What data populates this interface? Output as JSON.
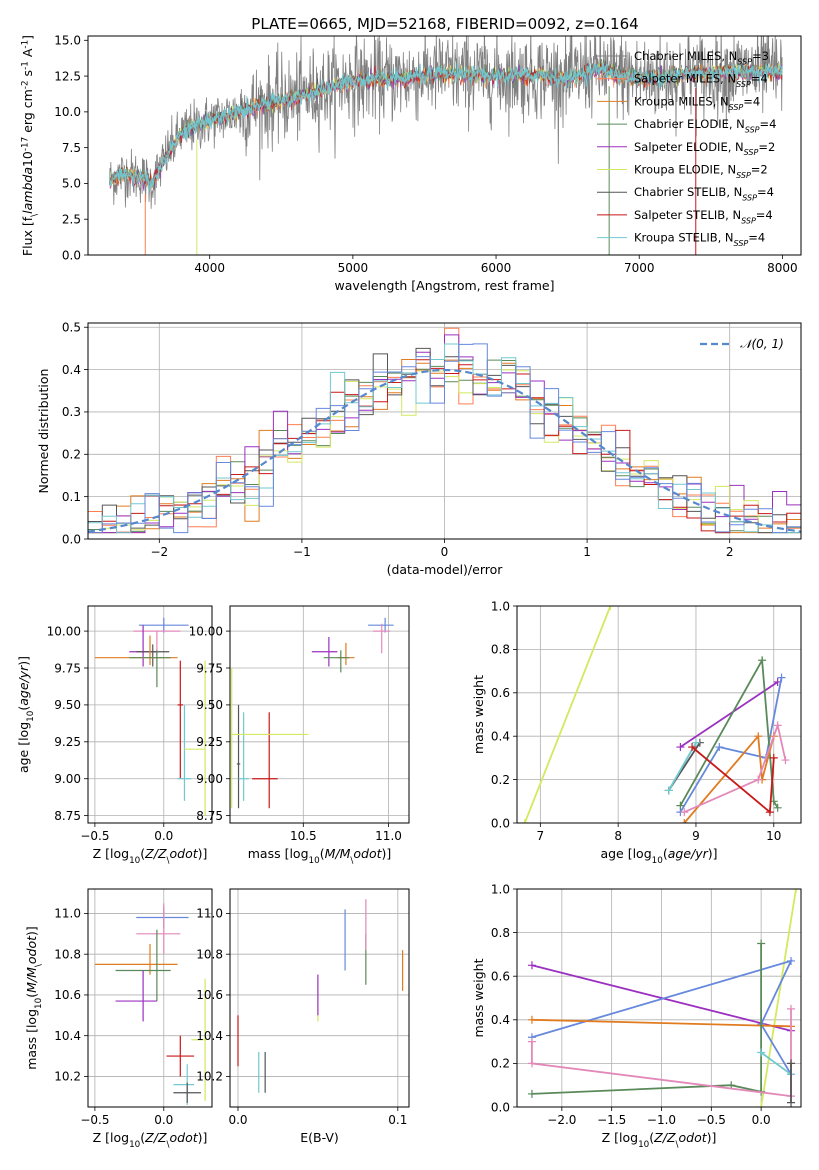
{
  "figure": {
    "title": "PLATE=0665, MJD=52168, FIBERID=0092, z=0.164"
  },
  "palette": [
    "#808080",
    "#ff7f50",
    "#e07b20",
    "#5a8a5a",
    "#9b30c0",
    "#d4e860",
    "#555555",
    "#c81818",
    "#70c8d0",
    "#6688dd",
    "#e389b9"
  ],
  "chart_data": [
    {
      "id": "spectrum",
      "type": "line",
      "xlabel": "wavelength [Angstrom, rest frame]",
      "ylabel": "Flux [f$_\\lambda$10$^{-17}$ erg cm$^{-2}$ s$^{-1}$ A$^{-1}$]",
      "xlim": [
        3150,
        8130
      ],
      "ylim": [
        0,
        15.3
      ],
      "xticks": [
        4000,
        5000,
        6000,
        7000,
        8000
      ],
      "yticks": [
        0.0,
        2.5,
        5.0,
        7.5,
        10.0,
        12.5,
        15.0
      ],
      "grid": false,
      "legend_position": "top-right",
      "legend": [
        "Chabrier MILES, N$_{SSP}$=3",
        "Salpeter MILES, N$_{SSP}$=4",
        "Kroupa MILES, N$_{SSP}$=4",
        "Chabrier ELODIE, N$_{SSP}$=4",
        "Salpeter ELODIE, N$_{SSP}$=2",
        "Kroupa ELODIE, N$_{SSP}$=2",
        "Chabrier STELIB, N$_{SSP}$=4",
        "Salpeter STELIB, N$_{SSP}$=4",
        "Kroupa STELIB, N$_{SSP}$=4"
      ],
      "spectrum_anchors": {
        "x": [
          3300,
          3400,
          3500,
          3600,
          3700,
          3800,
          3900,
          4000,
          4200,
          4400,
          4600,
          4800,
          5000,
          5300,
          5600,
          6000,
          6300,
          6500,
          6700,
          7000,
          7300,
          7600,
          8000
        ],
        "y": [
          5.2,
          5.7,
          5.5,
          5.0,
          7.0,
          8.5,
          9.0,
          9.4,
          10.0,
          10.6,
          11.0,
          11.6,
          12.2,
          12.3,
          12.7,
          12.5,
          12.6,
          12.3,
          13.0,
          12.3,
          12.6,
          12.8,
          12.8
        ]
      }
    },
    {
      "id": "residuals",
      "type": "step",
      "xlabel": "(data-model)/error",
      "ylabel": "Normed distribution",
      "xlim": [
        -2.5,
        2.5
      ],
      "ylim": [
        0,
        0.51
      ],
      "xticks": [
        -2,
        -1,
        0,
        1,
        2
      ],
      "yticks": [
        0.0,
        0.1,
        0.2,
        0.3,
        0.4,
        0.5
      ],
      "grid": true,
      "legend_position": "top-right",
      "legend": [
        "$\\mathcal{N}(0,1)$"
      ]
    },
    {
      "id": "age_vs_Z",
      "type": "errorbar",
      "xlabel": "Z [log$_{10}$($Z/Z_\\odot$)]",
      "ylabel": "age  [log$_{10}$($age/yr$)]",
      "xlim": [
        -0.55,
        0.35
      ],
      "ylim": [
        8.7,
        10.17
      ],
      "xticks": [
        -0.5,
        0.0,
        0.5
      ],
      "yticks": [
        8.75,
        9.0,
        9.25,
        9.5,
        9.75,
        10.0
      ],
      "grid": true,
      "points": [
        {
          "c": 9,
          "x": 0.0,
          "xe": [
            0.18,
            0.18
          ],
          "y": 10.04,
          "ye": [
            0.05,
            0.05
          ]
        },
        {
          "c": 10,
          "x": -0.05,
          "xe": [
            0.17,
            0.17
          ],
          "y": 10.0,
          "ye": [
            0.16,
            0.0
          ]
        },
        {
          "c": 4,
          "x": -0.15,
          "xe": [
            0.1,
            0.1
          ],
          "y": 9.86,
          "ye": [
            0.1,
            0.18
          ]
        },
        {
          "c": 6,
          "x": -0.08,
          "xe": [
            0.12,
            0.12
          ],
          "y": 9.86,
          "ye": [
            0.1,
            0.05
          ]
        },
        {
          "c": 2,
          "x": -0.1,
          "xe": [
            0.4,
            0.2
          ],
          "y": 9.82,
          "ye": [
            0.05,
            0.15
          ]
        },
        {
          "c": 3,
          "x": -0.05,
          "xe": [
            0.2,
            0.1
          ],
          "y": 9.82,
          "ye": [
            0.2,
            0.05
          ]
        },
        {
          "c": 7,
          "x": 0.12,
          "xe": [
            0.02,
            0.02
          ],
          "y": 9.5,
          "ye": [
            0.5,
            0.3
          ]
        },
        {
          "c": 8,
          "x": 0.15,
          "xe": [
            0.05,
            0.05
          ],
          "y": 9.0,
          "ye": [
            0.15,
            0.5
          ]
        },
        {
          "c": 5,
          "x": 0.3,
          "xe": [
            0.15,
            0.0
          ],
          "y": 9.2,
          "ye": [
            0.45,
            0.6
          ]
        }
      ]
    },
    {
      "id": "age_vs_mass",
      "type": "errorbar",
      "xlabel": "mass [log$_{10}$($M/M_\\odot$)]",
      "xlim": [
        10.07,
        11.12
      ],
      "ylim": [
        8.7,
        10.17
      ],
      "xticks": [
        10.5,
        11.0
      ],
      "yticks": [
        8.75,
        9.0,
        9.25,
        9.5,
        9.75,
        10.0
      ],
      "grid": true,
      "points": [
        {
          "c": 9,
          "x": 10.98,
          "xe": [
            0.1,
            0.05
          ],
          "y": 10.04,
          "ye": [
            0.05,
            0.05
          ]
        },
        {
          "c": 10,
          "x": 10.96,
          "xe": [
            0.05,
            0.05
          ],
          "y": 10.0,
          "ye": [
            0.15,
            0.05
          ]
        },
        {
          "c": 4,
          "x": 10.65,
          "xe": [
            0.1,
            0.05
          ],
          "y": 9.86,
          "ye": [
            0.1,
            0.1
          ]
        },
        {
          "c": 2,
          "x": 10.75,
          "xe": [
            0.05,
            0.05
          ],
          "y": 9.82,
          "ye": [
            0.05,
            0.1
          ]
        },
        {
          "c": 3,
          "x": 10.72,
          "xe": [
            0.1,
            0.05
          ],
          "y": 9.82,
          "ye": [
            0.1,
            0.05
          ]
        },
        {
          "c": 7,
          "x": 10.3,
          "xe": [
            0.1,
            0.05
          ],
          "y": 9.0,
          "ye": [
            0.2,
            0.45
          ]
        },
        {
          "c": 6,
          "x": 10.12,
          "xe": [
            0.01,
            0.01
          ],
          "y": 9.1,
          "ye": [
            0.3,
            0.4
          ]
        },
        {
          "c": 8,
          "x": 10.15,
          "xe": [
            0.03,
            0.03
          ],
          "y": 9.0,
          "ye": [
            0.15,
            0.45
          ]
        },
        {
          "c": 5,
          "x": 10.08,
          "xe": [
            0.0,
            0.45
          ],
          "y": 9.3,
          "ye": [
            0.5,
            0.45
          ]
        }
      ]
    },
    {
      "id": "weight_vs_age",
      "type": "line",
      "xlabel": "age  [log$_{10}$($age/yr$)]",
      "ylabel": "mass weight",
      "xlim": [
        6.7,
        10.35
      ],
      "ylim": [
        0,
        1.0
      ],
      "xticks": [
        7,
        8,
        9,
        10
      ],
      "yticks": [
        0.0,
        0.2,
        0.4,
        0.6,
        0.8,
        1.0
      ],
      "grid": true,
      "series": [
        {
          "c": 5,
          "x": [
            6.8,
            7.9
          ],
          "y": [
            0.0,
            1.0
          ]
        },
        {
          "c": 4,
          "x": [
            8.8,
            10.05
          ],
          "y": [
            0.35,
            0.65
          ]
        },
        {
          "c": 9,
          "x": [
            8.8,
            9.3,
            9.9,
            10.1
          ],
          "y": [
            0.05,
            0.35,
            0.3,
            0.67
          ]
        },
        {
          "c": 3,
          "x": [
            8.8,
            9.85,
            10.0,
            10.05
          ],
          "y": [
            0.08,
            0.75,
            0.1,
            0.07
          ]
        },
        {
          "c": 2,
          "x": [
            8.85,
            9.8,
            9.85,
            10.0
          ],
          "y": [
            0.0,
            0.4,
            0.2,
            0.4
          ]
        },
        {
          "c": 10,
          "x": [
            8.85,
            9.8,
            10.05,
            10.15
          ],
          "y": [
            0.05,
            0.2,
            0.45,
            0.29
          ]
        },
        {
          "c": 6,
          "x": [
            8.65,
            9.05
          ],
          "y": [
            0.15,
            0.37
          ]
        },
        {
          "c": 8,
          "x": [
            8.65,
            9.0
          ],
          "y": [
            0.15,
            0.37
          ]
        },
        {
          "c": 7,
          "x": [
            8.95,
            9.95,
            10.0
          ],
          "y": [
            0.35,
            0.05,
            0.3
          ]
        }
      ]
    },
    {
      "id": "mass_vs_Z",
      "type": "errorbar",
      "xlabel": "Z [log$_{10}$($Z/Z_\\odot$)]",
      "ylabel": "mass [log$_{10}$($M/M_\\odot$)]",
      "xlim": [
        -0.55,
        0.35
      ],
      "ylim": [
        10.05,
        11.12
      ],
      "xticks": [
        -0.5,
        0.0,
        0.5
      ],
      "yticks": [
        10.2,
        10.4,
        10.6,
        10.8,
        11.0
      ],
      "grid": true,
      "points": [
        {
          "c": 9,
          "x": 0.0,
          "xe": [
            0.2,
            0.18
          ],
          "y": 10.98,
          "ye": [
            0.05,
            0.05
          ]
        },
        {
          "c": 10,
          "x": 0.0,
          "xe": [
            0.2,
            0.12
          ],
          "y": 10.9,
          "ye": [
            0.1,
            0.15
          ]
        },
        {
          "c": 2,
          "x": -0.1,
          "xe": [
            0.4,
            0.2
          ],
          "y": 10.75,
          "ye": [
            0.05,
            0.1
          ]
        },
        {
          "c": 3,
          "x": -0.05,
          "xe": [
            0.3,
            0.1
          ],
          "y": 10.72,
          "ye": [
            0.15,
            0.2
          ]
        },
        {
          "c": 4,
          "x": -0.15,
          "xe": [
            0.2,
            0.1
          ],
          "y": 10.57,
          "ye": [
            0.1,
            0.15
          ]
        },
        {
          "c": 7,
          "x": 0.12,
          "xe": [
            0.1,
            0.1
          ],
          "y": 10.3,
          "ye": [
            0.1,
            0.1
          ]
        },
        {
          "c": 8,
          "x": 0.17,
          "xe": [
            0.1,
            0.05
          ],
          "y": 10.16,
          "ye": [
            0.1,
            0.1
          ]
        },
        {
          "c": 6,
          "x": 0.17,
          "xe": [
            0.1,
            0.1
          ],
          "y": 10.12,
          "ye": [
            0.05,
            0.05
          ]
        },
        {
          "c": 5,
          "x": 0.3,
          "xe": [
            0.1,
            0.0
          ],
          "y": 10.38,
          "ye": [
            0.3,
            0.3
          ]
        }
      ]
    },
    {
      "id": "mass_vs_EBV",
      "type": "errorbar",
      "xlabel": "E(B-V)",
      "xlim": [
        -0.005,
        0.107
      ],
      "ylim": [
        10.05,
        11.12
      ],
      "xticks": [
        0.0,
        0.1
      ],
      "yticks": [
        10.2,
        10.4,
        10.6,
        10.8,
        11.0
      ],
      "grid": true,
      "points": [
        {
          "c": 7,
          "x": 0.0,
          "y": 10.35,
          "ye": [
            0.1,
            0.15
          ]
        },
        {
          "c": 8,
          "x": 0.013,
          "y": 10.22,
          "ye": [
            0.1,
            0.1
          ]
        },
        {
          "c": 6,
          "x": 0.017,
          "y": 10.22,
          "ye": [
            0.1,
            0.1
          ]
        },
        {
          "c": 5,
          "x": 0.05,
          "y": 10.57,
          "ye": [
            0.1,
            0.1
          ]
        },
        {
          "c": 4,
          "x": 0.05,
          "y": 10.6,
          "ye": [
            0.1,
            0.1
          ]
        },
        {
          "c": 9,
          "x": 0.067,
          "y": 10.87,
          "ye": [
            0.15,
            0.15
          ]
        },
        {
          "c": 3,
          "x": 0.08,
          "y": 10.75,
          "ye": [
            0.1,
            0.15
          ]
        },
        {
          "c": 10,
          "x": 0.08,
          "y": 10.92,
          "ye": [
            0.1,
            0.15
          ]
        },
        {
          "c": 2,
          "x": 0.103,
          "y": 10.72,
          "ye": [
            0.1,
            0.1
          ]
        }
      ]
    },
    {
      "id": "weight_vs_Z",
      "type": "line",
      "xlabel": "Z [log$_{10}$($Z/Z_\\odot$)]",
      "ylabel": "mass weight",
      "xlim": [
        -2.45,
        0.4
      ],
      "ylim": [
        0,
        1.0
      ],
      "xticks": [
        -2.0,
        -1.5,
        -1.0,
        -0.5,
        0.0
      ],
      "yticks": [
        0.0,
        0.2,
        0.4,
        0.6,
        0.8,
        1.0
      ],
      "grid": true,
      "series": [
        {
          "c": 5,
          "x": [
            0.0,
            0.35
          ],
          "y": [
            0.0,
            1.0
          ]
        },
        {
          "c": 4,
          "x": [
            -2.3,
            0.3
          ],
          "y": [
            0.65,
            0.35
          ]
        },
        {
          "c": 9,
          "x": [
            -2.3,
            0.3,
            0.0,
            0.3
          ],
          "y": [
            0.32,
            0.67,
            0.38,
            0.15
          ]
        },
        {
          "c": 2,
          "x": [
            -2.3,
            0.3
          ],
          "y": [
            0.4,
            0.37
          ]
        },
        {
          "c": 3,
          "x": [
            -2.3,
            -0.3,
            0.0,
            0.0
          ],
          "y": [
            0.06,
            0.1,
            0.07,
            0.75
          ]
        },
        {
          "c": 10,
          "x": [
            -2.3,
            -2.3,
            0.3,
            0.3
          ],
          "y": [
            0.3,
            0.2,
            0.05,
            0.45
          ]
        },
        {
          "c": 8,
          "x": [
            0.0,
            0.3
          ],
          "y": [
            0.25,
            0.15
          ]
        },
        {
          "c": 6,
          "x": [
            0.3,
            0.3
          ],
          "y": [
            0.02,
            0.2
          ]
        }
      ]
    }
  ]
}
